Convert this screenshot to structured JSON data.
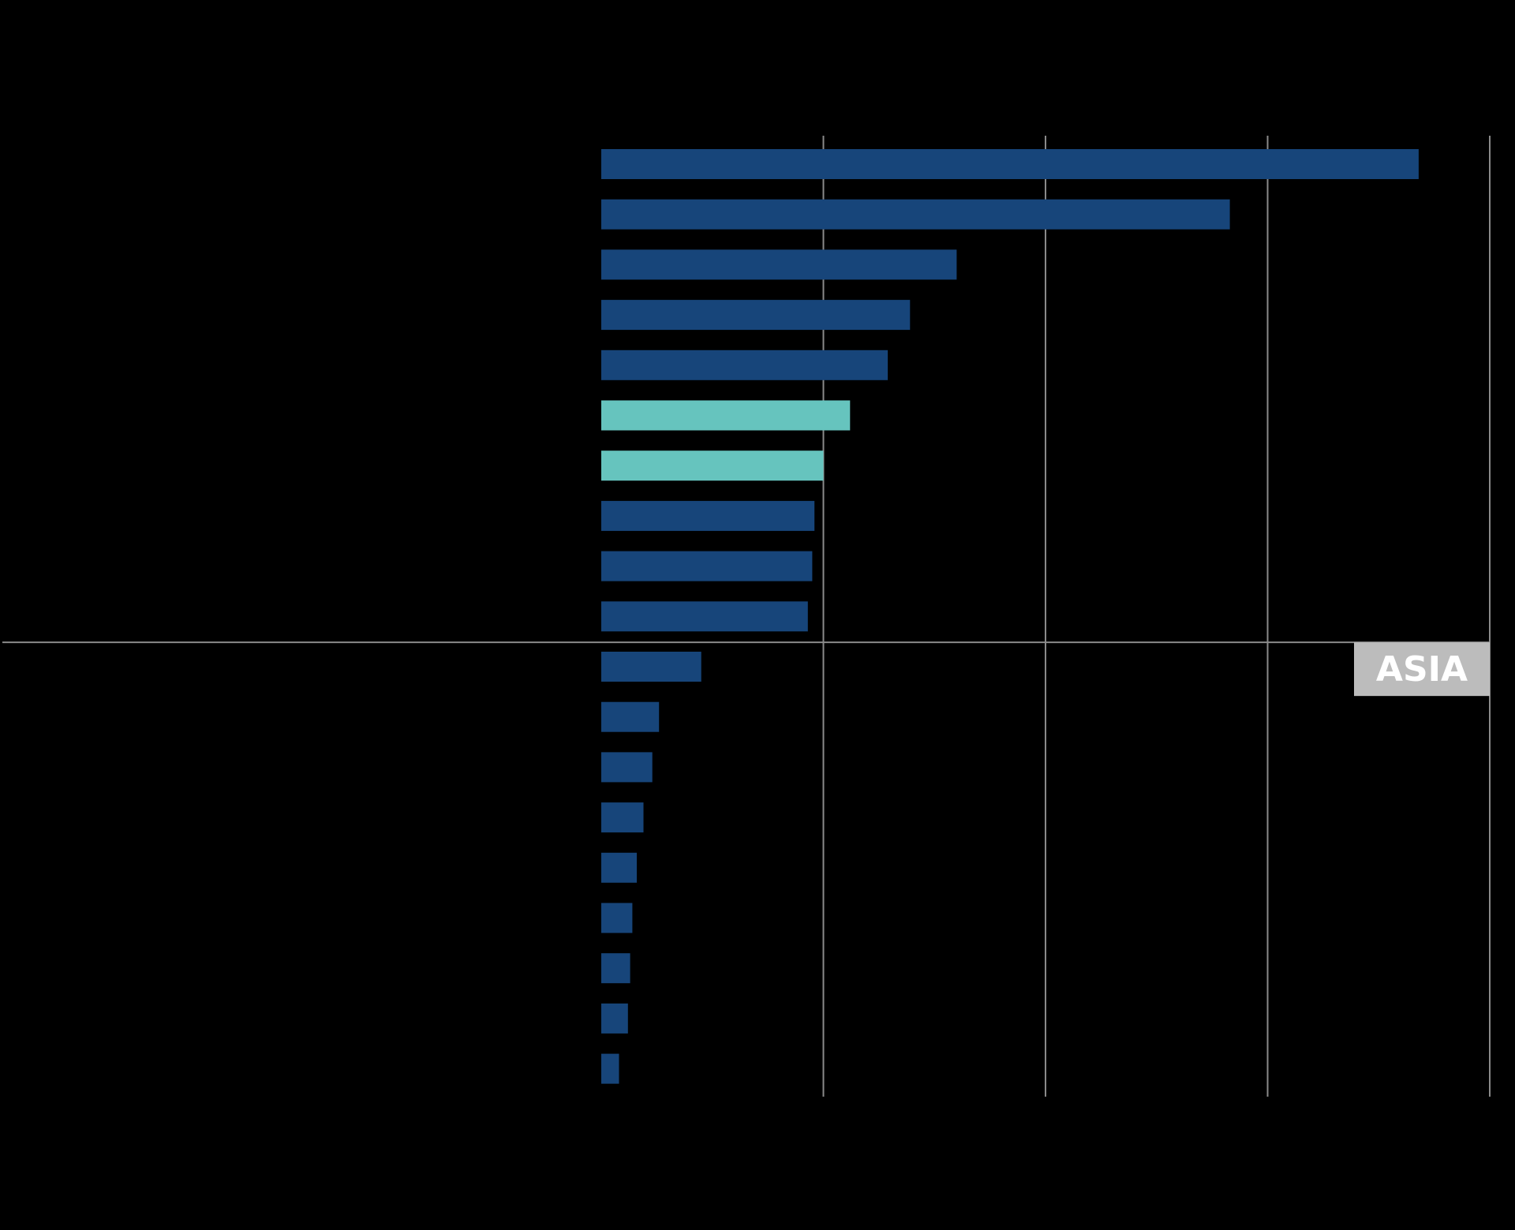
{
  "chart_data": {
    "type": "bar",
    "orientation": "horizontal",
    "title": "",
    "xlabel": "",
    "ylabel": "",
    "xlim": [
      0,
      4
    ],
    "grid": true,
    "categories": [
      "",
      "",
      "",
      "",
      "",
      "",
      "",
      "",
      "",
      "",
      "",
      "",
      "",
      "",
      "",
      "",
      "",
      "",
      ""
    ],
    "values": [
      3.68,
      2.83,
      1.6,
      1.39,
      1.29,
      1.12,
      1.0,
      0.96,
      0.95,
      0.93,
      0.45,
      0.26,
      0.23,
      0.19,
      0.16,
      0.14,
      0.13,
      0.12,
      0.08
    ],
    "highlighted": [
      5,
      6
    ],
    "group_divider_after_index": 9,
    "group_label": "ASIA",
    "colors": {
      "bar": "#17457a",
      "highlight": "#66c4be",
      "grid": "#8a8a8a",
      "tag_bg": "#bcbcbc",
      "tag_text": "#ffffff",
      "background": "#000000"
    }
  }
}
